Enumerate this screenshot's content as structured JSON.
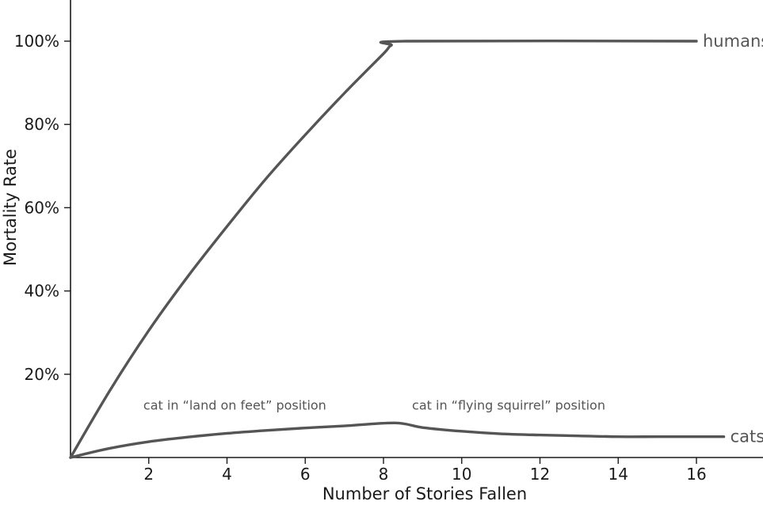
{
  "chart_data": {
    "type": "line",
    "xlabel": "Number of Stories Fallen",
    "ylabel": "Mortality Rate",
    "xlim": [
      0,
      17.5
    ],
    "ylim": [
      0,
      100
    ],
    "x_ticks": [
      2,
      4,
      6,
      8,
      10,
      12,
      14,
      16
    ],
    "y_ticks": [
      20,
      40,
      60,
      80,
      100
    ],
    "y_tick_suffix": "%",
    "grid": false,
    "series": [
      {
        "name": "humans",
        "color": "#555555",
        "points": [
          [
            0,
            0
          ],
          [
            1,
            16
          ],
          [
            2,
            30.5
          ],
          [
            3,
            43.5
          ],
          [
            4,
            55.5
          ],
          [
            5,
            67
          ],
          [
            6,
            77.5
          ],
          [
            7,
            87.5
          ],
          [
            8,
            97
          ],
          [
            8.2,
            99
          ],
          [
            8.6,
            100
          ],
          [
            16,
            100
          ]
        ]
      },
      {
        "name": "cats",
        "color": "#555555",
        "points": [
          [
            0,
            0
          ],
          [
            1,
            2.2
          ],
          [
            2,
            3.8
          ],
          [
            3,
            4.9
          ],
          [
            4,
            5.8
          ],
          [
            5,
            6.5
          ],
          [
            6,
            7.1
          ],
          [
            7,
            7.6
          ],
          [
            8.3,
            8.3
          ],
          [
            9,
            7.2
          ],
          [
            10,
            6.3
          ],
          [
            11,
            5.7
          ],
          [
            12,
            5.4
          ],
          [
            13,
            5.2
          ],
          [
            14,
            5.0
          ],
          [
            15,
            5.0
          ],
          [
            16,
            5.0
          ],
          [
            16.7,
            5.0
          ]
        ]
      }
    ],
    "annotations": [
      {
        "text": "cat in “land on feet” position",
        "x": 4.2,
        "y": 11.5
      },
      {
        "text": "cat in “flying squirrel” position",
        "x": 11.2,
        "y": 11.5
      }
    ]
  }
}
